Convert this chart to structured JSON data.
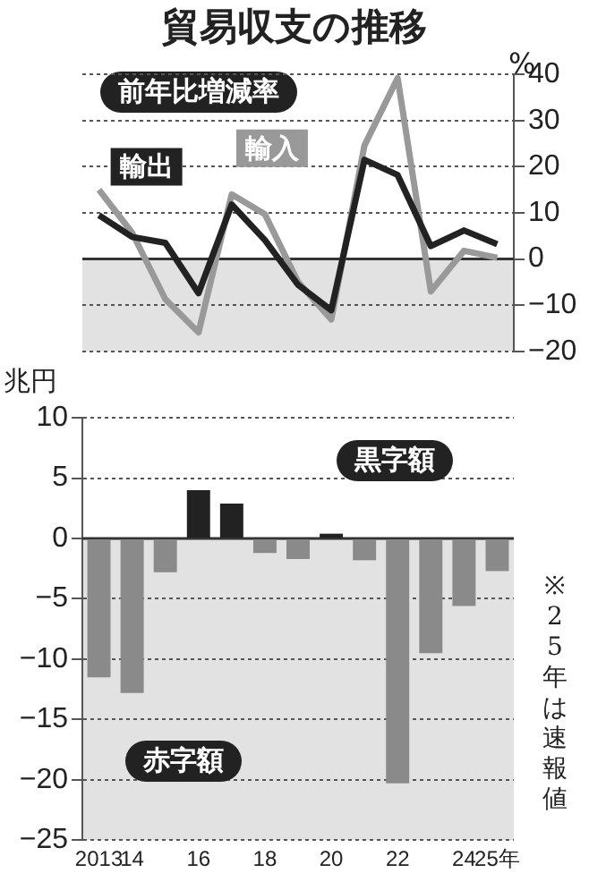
{
  "chart_data": [
    {
      "type": "line",
      "title": "貿易収支の推移",
      "subtitle": "前年比増減率",
      "ylabel": "%",
      "categories": [
        null,
        null,
        null,
        null,
        null,
        null,
        null,
        null,
        null,
        null,
        null,
        null,
        null
      ],
      "series": [
        {
          "name": "輸出",
          "color": "#222222",
          "values": [
            9.5,
            4.8,
            3.5,
            -7.4,
            11.8,
            4.1,
            -5.6,
            -11.1,
            21.5,
            18.2,
            2.8,
            6.2,
            3.2
          ]
        },
        {
          "name": "輸入",
          "color": "#999999",
          "values": [
            15,
            5.7,
            -8.7,
            -15.9,
            14,
            9.7,
            -5,
            -13.1,
            24.6,
            39.2,
            -7,
            1.8,
            0.3
          ]
        }
      ],
      "ylim": [
        -20,
        40
      ],
      "yticks": [
        -20,
        -10,
        0,
        10,
        20,
        30,
        40
      ],
      "grid": "y",
      "legend": false,
      "tick_labels": "y",
      "bands": [
        {
          "axis": "y",
          "from": -20,
          "to": 0,
          "color": "#e2e2e2"
        }
      ]
    },
    {
      "type": "bar",
      "ylabel": "兆円",
      "categories": [
        "2013",
        "14",
        null,
        "16",
        null,
        "18",
        null,
        "20",
        null,
        "22",
        null,
        "24",
        "25年"
      ],
      "values": [
        -11.5,
        -12.8,
        -2.8,
        4.0,
        2.9,
        -1.2,
        -1.7,
        0.4,
        -1.8,
        -20.3,
        -9.5,
        -5.6,
        -2.7
      ],
      "colors": [
        "#8a8a8a",
        "#8a8a8a",
        "#8a8a8a",
        "#222222",
        "#222222",
        "#8a8a8a",
        "#8a8a8a",
        "#222222",
        "#8a8a8a",
        "#8a8a8a",
        "#8a8a8a",
        "#8a8a8a",
        "#8a8a8a"
      ],
      "ylim": [
        -25,
        10
      ],
      "yticks": [
        -25,
        -20,
        -15,
        -10,
        -5,
        0,
        5,
        10
      ],
      "grid": "y",
      "legend": false,
      "bands": [
        {
          "axis": "y",
          "from": -25,
          "to": 0,
          "color": "#e2e2e2"
        }
      ],
      "annotations": [
        "黒字額",
        "赤字額",
        "※25年は速報値"
      ]
    }
  ]
}
